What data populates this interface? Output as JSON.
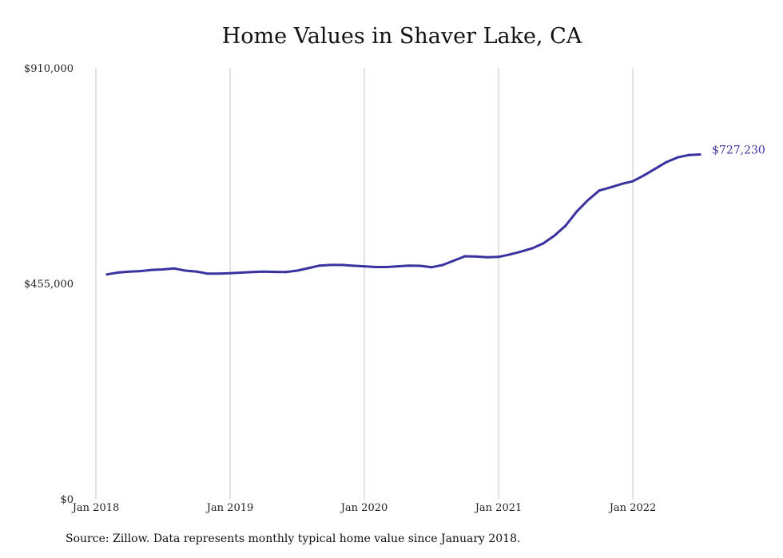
{
  "title": "Home Values in Shaver Lake, CA",
  "source": "Source: Zillow. Data represents monthly typical home value since January 2018.",
  "chart_data": {
    "type": "line",
    "title": "Home Values in Shaver Lake, CA",
    "xlabel": "",
    "ylabel": "",
    "ylim": [
      0,
      910000
    ],
    "y_ticks": [
      {
        "value": 0,
        "label": "$0"
      },
      {
        "value": 455000,
        "label": "$455,000"
      },
      {
        "value": 910000,
        "label": "$910,000"
      }
    ],
    "x_ticks": [
      {
        "date": "2018-01",
        "label": "Jan 2018"
      },
      {
        "date": "2019-01",
        "label": "Jan 2019"
      },
      {
        "date": "2020-01",
        "label": "Jan 2020"
      },
      {
        "date": "2021-01",
        "label": "Jan 2021"
      },
      {
        "date": "2022-01",
        "label": "Jan 2022"
      }
    ],
    "grid": "vertical",
    "end_label": "$727,230",
    "line_color": "#3a32a0",
    "series": [
      {
        "x": [
          "2018-02",
          "2018-03",
          "2018-04",
          "2018-05",
          "2018-06",
          "2018-07",
          "2018-08",
          "2018-09",
          "2018-10",
          "2018-11",
          "2018-12",
          "2019-01",
          "2019-02",
          "2019-03",
          "2019-04",
          "2019-05",
          "2019-06",
          "2019-07",
          "2019-08",
          "2019-09",
          "2019-10",
          "2019-11",
          "2019-12",
          "2020-01",
          "2020-02",
          "2020-03",
          "2020-04",
          "2020-05",
          "2020-06",
          "2020-07",
          "2020-08",
          "2020-09",
          "2020-10",
          "2020-11",
          "2020-12",
          "2021-01",
          "2021-02",
          "2021-03",
          "2021-04",
          "2021-05",
          "2021-06",
          "2021-07",
          "2021-08",
          "2021-09",
          "2021-10",
          "2021-11",
          "2021-12",
          "2022-01",
          "2022-02",
          "2022-03",
          "2022-04",
          "2022-05",
          "2022-06",
          "2022-07"
        ],
        "values": [
          474000,
          478000,
          480000,
          481000,
          483500,
          484500,
          486500,
          482000,
          480000,
          475500,
          475700,
          476500,
          477700,
          479000,
          479800,
          479200,
          479100,
          482000,
          487200,
          492500,
          494000,
          494000,
          492300,
          491000,
          489500,
          489500,
          491000,
          492500,
          492000,
          489000,
          493700,
          503000,
          512300,
          511600,
          510100,
          511000,
          516000,
          522000,
          529000,
          539500,
          556000,
          577000,
          607000,
          631000,
          651000,
          657500,
          665000,
          670500,
          683000,
          697000,
          711000,
          721000,
          726000,
          727230
        ]
      }
    ]
  }
}
